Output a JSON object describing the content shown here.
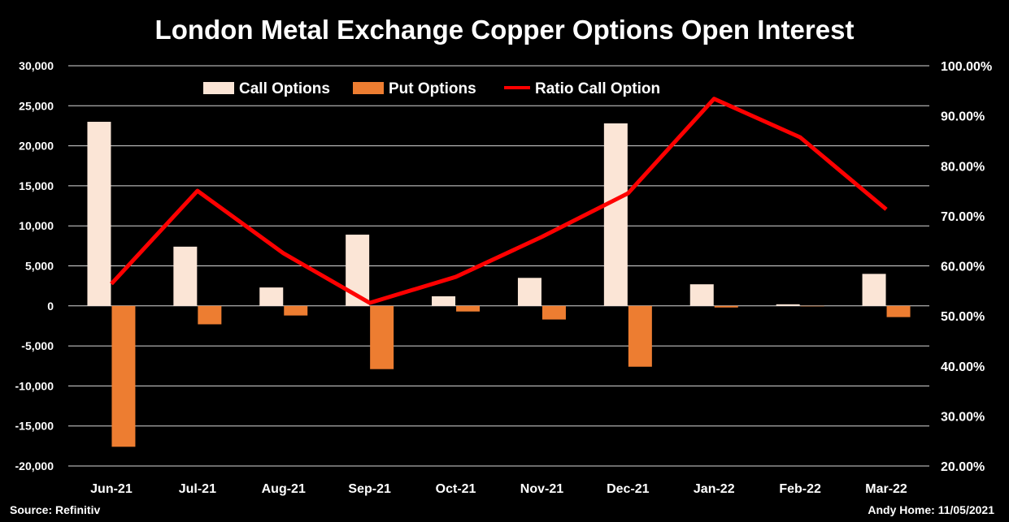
{
  "chart_data": {
    "type": "bar",
    "title": "London Metal Exchange Copper Options Open Interest",
    "categories": [
      "Jun-21",
      "Jul-21",
      "Aug-21",
      "Sep-21",
      "Oct-21",
      "Nov-21",
      "Dec-21",
      "Jan-22",
      "Feb-22",
      "Mar-22"
    ],
    "series": [
      {
        "name": "Call Options",
        "type": "bar",
        "axis": "left",
        "color": "#FBE5D6",
        "values": [
          23000,
          7400,
          2300,
          8900,
          1200,
          3500,
          22800,
          2700,
          200,
          4000
        ]
      },
      {
        "name": "Put Options",
        "type": "bar",
        "axis": "left",
        "color": "#ED7D31",
        "values": [
          -17600,
          -2300,
          -1200,
          -7900,
          -700,
          -1700,
          -7600,
          -200,
          -50,
          -1400
        ]
      },
      {
        "name": "Ratio Call Option",
        "type": "line",
        "axis": "right",
        "color": "#FF0000",
        "values": [
          56.4,
          75.0,
          62.5,
          52.6,
          57.8,
          65.8,
          74.5,
          93.4,
          85.7,
          71.3
        ]
      }
    ],
    "left_axis": {
      "ylim": [
        -20000,
        30000
      ],
      "ticks": [
        30000,
        25000,
        20000,
        15000,
        10000,
        5000,
        0,
        -5000,
        -10000,
        -15000,
        -20000
      ],
      "tick_labels": [
        "30,000",
        "25,000",
        "20,000",
        "15,000",
        "10,000",
        "5,000",
        "0",
        "-5,000",
        "-10,000",
        "-15,000",
        "-20,000"
      ]
    },
    "right_axis": {
      "ylim": [
        20,
        100
      ],
      "ticks": [
        100,
        90,
        80,
        70,
        60,
        50,
        40,
        30,
        20
      ],
      "tick_labels": [
        "100.00%",
        "90.00%",
        "80.00%",
        "70.00%",
        "60.00%",
        "50.00%",
        "40.00%",
        "30.00%",
        "20.00%"
      ]
    },
    "grid": true,
    "legend_placement": "top-left"
  },
  "footer": {
    "source": "Source: Refinitiv",
    "credit": "Andy Home: 11/05/2021"
  }
}
